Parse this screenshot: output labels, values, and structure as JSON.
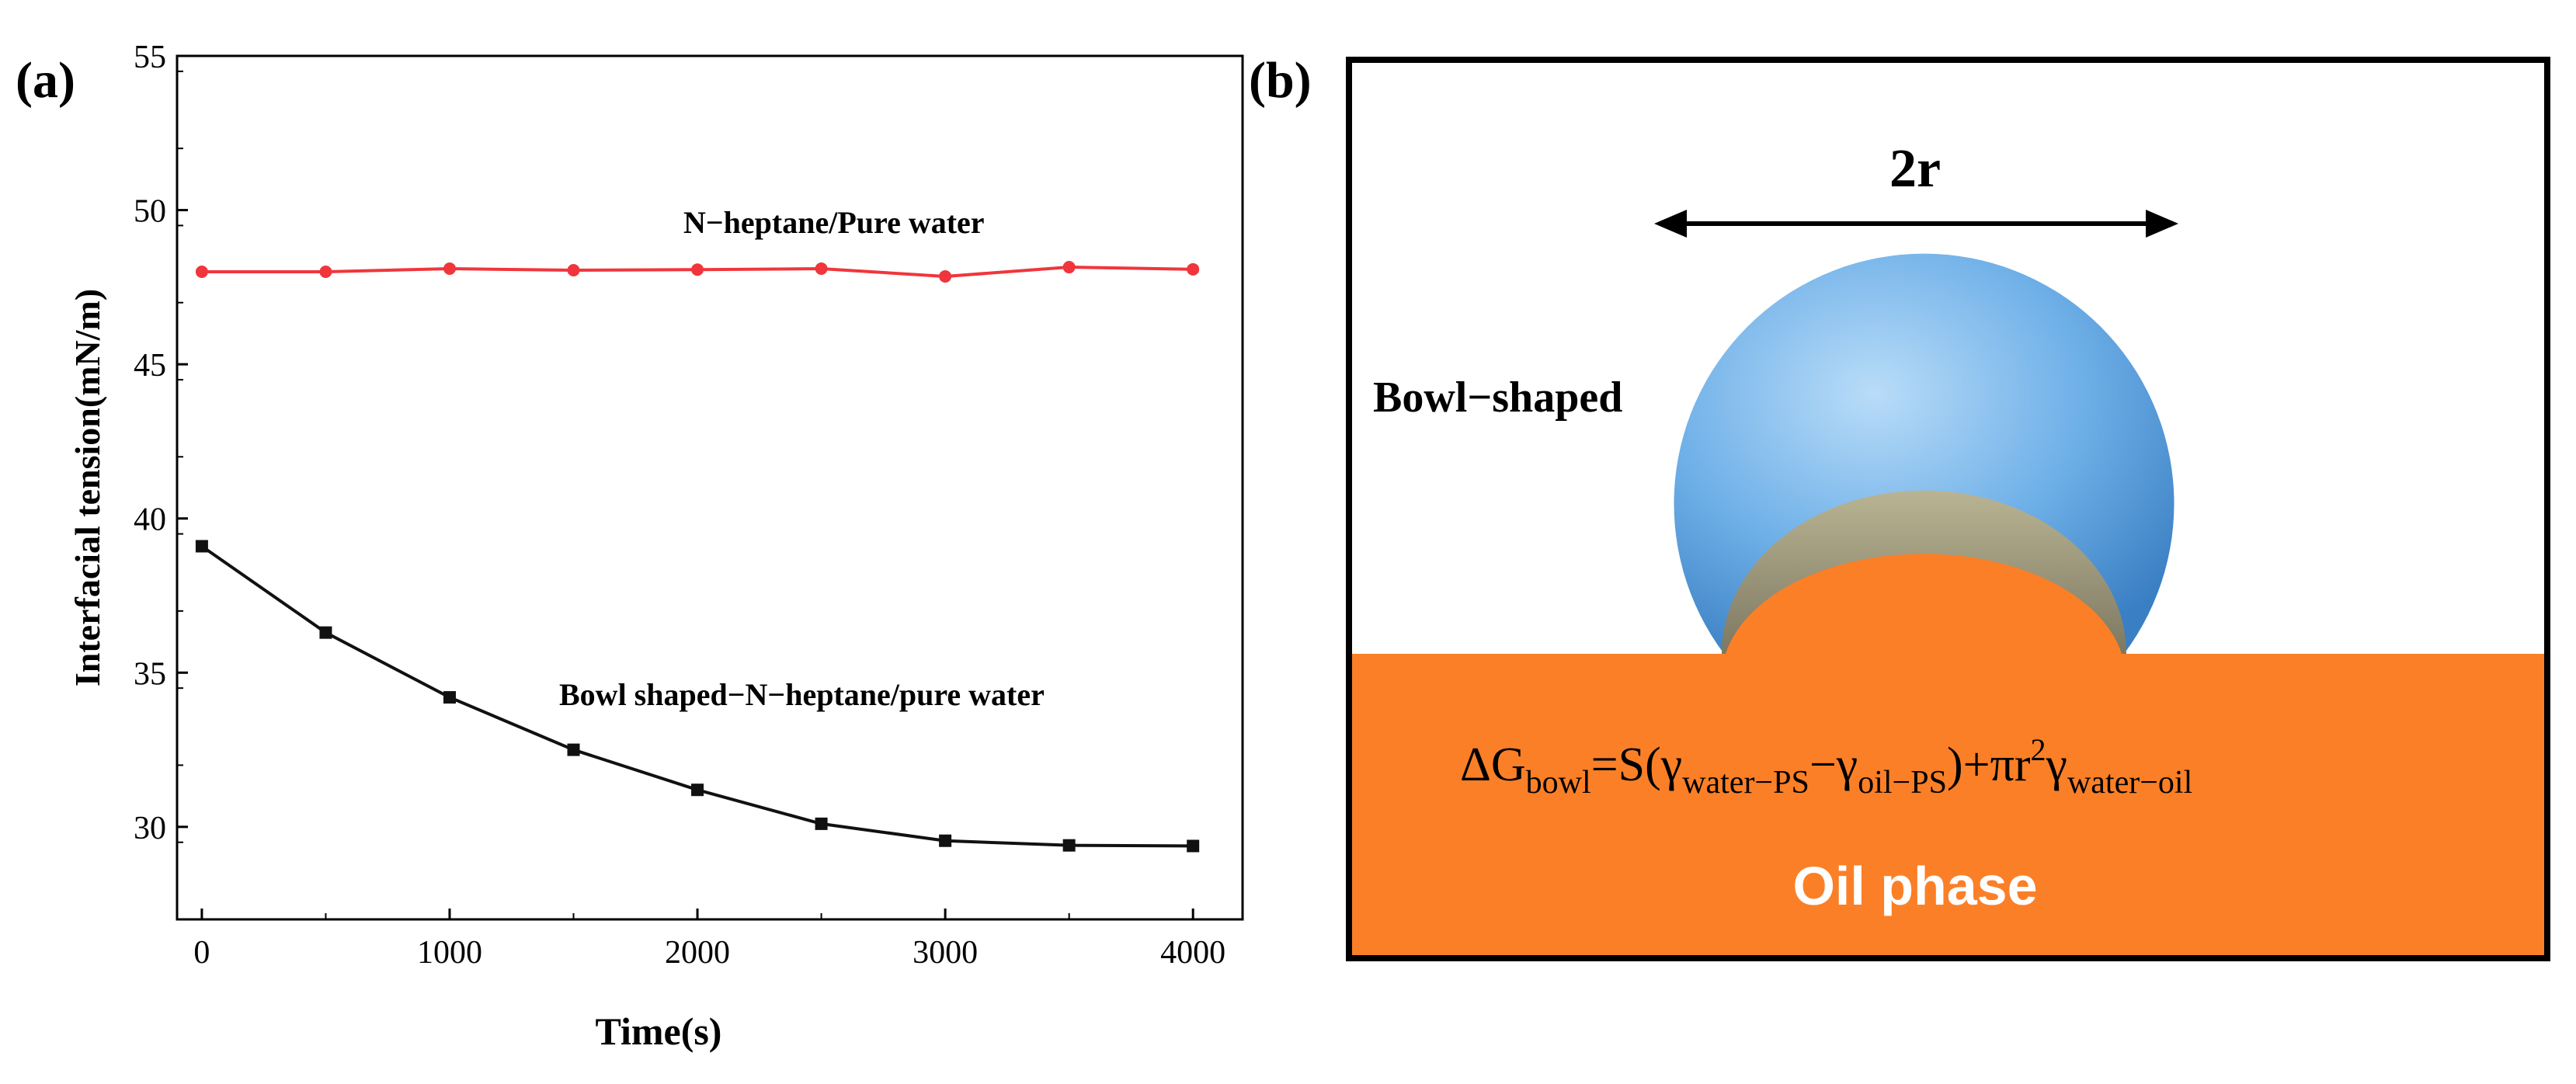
{
  "panel_a": {
    "label": "(a)",
    "chart_data": {
      "type": "line",
      "title": "",
      "xlabel": "Time(s)",
      "ylabel": "Interfacial tension(mN/m)",
      "xlim": [
        -100,
        4200
      ],
      "ylim": [
        27,
        55
      ],
      "xticks": [
        0,
        1000,
        2000,
        3000,
        4000
      ],
      "yticks": [
        30,
        35,
        40,
        45,
        50,
        55
      ],
      "x": [
        0,
        500,
        1000,
        1500,
        2000,
        2500,
        3000,
        3500,
        4000
      ],
      "series": [
        {
          "name": "N−heptane/Pure water",
          "color": "#f0363c",
          "marker": "circle",
          "values": [
            48.0,
            48.0,
            48.1,
            48.05,
            48.07,
            48.1,
            47.85,
            48.15,
            48.08
          ]
        },
        {
          "name": "Bowl shaped−N−heptane/pure water",
          "color": "#111111",
          "marker": "square",
          "values": [
            39.1,
            36.3,
            34.2,
            32.5,
            31.2,
            30.1,
            29.55,
            29.4,
            29.38
          ]
        }
      ]
    }
  },
  "panel_b": {
    "label": "(b)",
    "dimension_label": "2r",
    "shape_label": "Bowl−shaped",
    "phase_label": "Oil phase",
    "colors": {
      "oil": "#fb7f27",
      "bowl_outer": "#6fb0e8",
      "bowl_inner": "#8f8a6e",
      "frame": "#000000"
    },
    "equation": {
      "delta": "ΔG",
      "sub_bowl": "bowl",
      "eq": "=S(γ",
      "sub_water_ps": "water−PS",
      "minus": "−γ",
      "sub_oil_ps": "oil−PS",
      "plus": ")+πr",
      "sup": "2",
      "gamma": "γ",
      "sub_water_oil": "water−oil"
    }
  }
}
